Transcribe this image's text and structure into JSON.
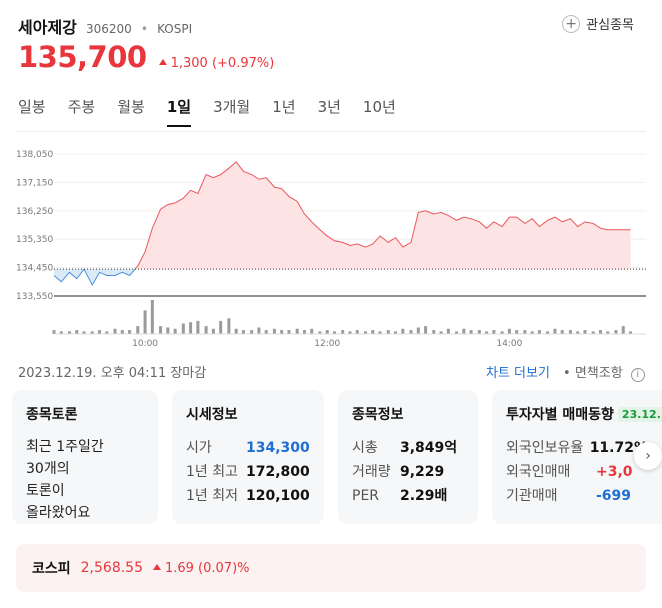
{
  "stock": {
    "name": "세아제강",
    "code": "306200",
    "separator": "•",
    "market": "KOSPI",
    "price": "135,700",
    "change": "1,300",
    "change_pct": "(+0.97%)",
    "favorite_label": "관심종목"
  },
  "tabs": [
    {
      "label": "일봉",
      "active": false
    },
    {
      "label": "주봉",
      "active": false
    },
    {
      "label": "월봉",
      "active": false
    },
    {
      "label": "1일",
      "active": true
    },
    {
      "label": "3개월",
      "active": false
    },
    {
      "label": "1년",
      "active": false
    },
    {
      "label": "3년",
      "active": false
    },
    {
      "label": "10년",
      "active": false
    }
  ],
  "chart_data": {
    "type": "area",
    "y_ticks": [
      "138,050",
      "137,150",
      "136,250",
      "135,350",
      "134,450",
      "133,550"
    ],
    "x_ticks": [
      "10:00",
      "12:00",
      "14:00"
    ],
    "ylim": [
      133550,
      138050
    ],
    "prev_close": 134400,
    "colors": {
      "up_fill": "#fde3e3",
      "up_line": "#e8585c",
      "down_fill": "#dbeaf8",
      "down_line": "#4a90d9",
      "volume": "#9a9a9a"
    },
    "series": [
      {
        "x": [
          9.0,
          9.08,
          9.17,
          9.25,
          9.33,
          9.42,
          9.5,
          9.58,
          9.67,
          9.75,
          9.83,
          9.92,
          10.0,
          10.08,
          10.17,
          10.25,
          10.33,
          10.42,
          10.5,
          10.58,
          10.67,
          10.75,
          10.83,
          10.92,
          11.0,
          11.08,
          11.17,
          11.25,
          11.33,
          11.42,
          11.5,
          11.58,
          11.67,
          11.75,
          11.83,
          11.92,
          12.0,
          12.08,
          12.17,
          12.25,
          12.33,
          12.42,
          12.5,
          12.58,
          12.67,
          12.75,
          12.83,
          12.92,
          13.0,
          13.08,
          13.17,
          13.25,
          13.33,
          13.42,
          13.5,
          13.58,
          13.67,
          13.75,
          13.83,
          13.92,
          14.0,
          14.08,
          14.17,
          14.25,
          14.33,
          14.42,
          14.5,
          14.58,
          14.67,
          14.75,
          14.83,
          14.92,
          15.0,
          15.08,
          15.17,
          15.25,
          15.33
        ],
        "y": [
          134200,
          134000,
          134300,
          134100,
          134400,
          133900,
          134300,
          134200,
          134200,
          134300,
          134200,
          134500,
          134950,
          135700,
          136300,
          136450,
          136500,
          136650,
          136900,
          136800,
          137400,
          137300,
          137400,
          137600,
          137800,
          137500,
          137400,
          137250,
          137300,
          137000,
          136950,
          136700,
          136550,
          136150,
          135900,
          135650,
          135450,
          135300,
          135250,
          135150,
          135200,
          135100,
          135200,
          135450,
          135250,
          135400,
          135100,
          135250,
          136200,
          136250,
          136150,
          136200,
          136100,
          135950,
          136050,
          136000,
          135900,
          135700,
          135900,
          135750,
          136050,
          136050,
          135850,
          136000,
          135750,
          135950,
          136050,
          135900,
          136000,
          135750,
          135900,
          135850,
          135700,
          135650,
          135650,
          135650,
          135650
        ]
      }
    ],
    "volume": [
      3,
      2,
      2,
      3,
      2,
      2,
      3,
      2,
      4,
      3,
      3,
      6,
      18,
      26,
      6,
      5,
      4,
      8,
      9,
      10,
      6,
      4,
      10,
      12,
      4,
      3,
      3,
      5,
      3,
      4,
      3,
      3,
      4,
      3,
      4,
      2,
      3,
      2,
      3,
      2,
      3,
      2,
      3,
      2,
      3,
      2,
      4,
      3,
      5,
      6,
      3,
      2,
      4,
      2,
      4,
      3,
      3,
      2,
      3,
      2,
      4,
      3,
      3,
      2,
      3,
      2,
      4,
      3,
      3,
      2,
      3,
      2,
      3,
      2,
      3,
      6,
      2
    ]
  },
  "footer": {
    "timestamp": "2023.12.19. 오후 04:11 장마감",
    "chart_more": "차트 더보기",
    "separator": "•",
    "disclaimer": "면책조항",
    "info_glyph": "i"
  },
  "cards": {
    "discussion": {
      "title": "종목토론",
      "line1": "최근 1주일간",
      "line2": "30개의",
      "line3": "토론이",
      "line4": "올라왔어요"
    },
    "quote": {
      "title": "시세정보",
      "rows": [
        {
          "k": "시가",
          "v": "134,300"
        },
        {
          "k": "1년 최고",
          "v": "172,800"
        },
        {
          "k": "1년 최저",
          "v": "120,100"
        }
      ]
    },
    "info": {
      "title": "종목정보",
      "rows": [
        {
          "k": "시총",
          "v": "3,849억"
        },
        {
          "k": "거래량",
          "v": "9,229"
        },
        {
          "k": "PER",
          "v": "2.29배"
        }
      ]
    },
    "investor": {
      "title": "투자자별 매매동향",
      "date": "23.12.",
      "rows": [
        {
          "k": "외국인보유율",
          "v": "11.72%"
        },
        {
          "k": "외국인매매",
          "v": "+3,0"
        },
        {
          "k": "기관매매",
          "v": "-699"
        }
      ]
    }
  },
  "next_glyph": "›",
  "index": {
    "name": "코스피",
    "value": "2,568.55",
    "change": "1.69 (0.07)%"
  }
}
